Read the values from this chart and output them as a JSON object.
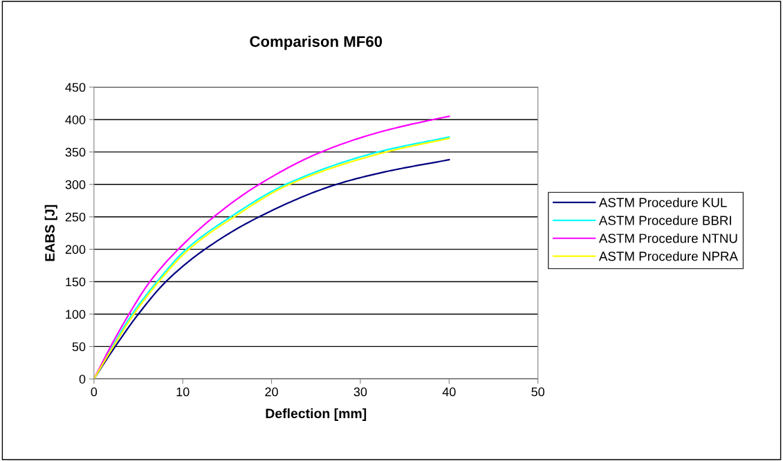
{
  "chart_data": {
    "type": "line",
    "title": "Comparison MF60",
    "xlabel": "Deflection [mm]",
    "ylabel": "EABS [J]",
    "xlim": [
      0,
      50
    ],
    "xticks": [
      0,
      10,
      20,
      30,
      40,
      50
    ],
    "ylim": [
      0,
      450
    ],
    "yticks": [
      0,
      50,
      100,
      150,
      200,
      250,
      300,
      350,
      400,
      450
    ],
    "grid": "y",
    "legend": "right",
    "marker": "none",
    "line_style": "solid",
    "series": [
      {
        "name": "ASTM Procedure KUL",
        "color": "#000080",
        "x": [
          0,
          2,
          5,
          8.1,
          12.5,
          18.6,
          27.3,
          33,
          40
        ],
        "values": [
          0,
          42,
          100,
          150,
          200,
          250,
          300,
          320,
          338
        ]
      },
      {
        "name": "ASTM Procedure BBRI",
        "color": "#00ffff",
        "x": [
          0,
          2,
          4.3,
          7.1,
          10.4,
          15.4,
          21.6,
          32,
          40
        ],
        "values": [
          0,
          48,
          100,
          150,
          200,
          250,
          300,
          350,
          373
        ]
      },
      {
        "name": "ASTM Procedure NTNU",
        "color": "#ff00ff",
        "x": [
          0,
          2,
          3.95,
          6.3,
          9.5,
          13.5,
          18.6,
          25.6,
          32,
          38.2,
          40
        ],
        "values": [
          0,
          53,
          100,
          150,
          200,
          250,
          300,
          350,
          380,
          400,
          405
        ]
      },
      {
        "name": "ASTM Procedure NPRA",
        "color": "#ffff00",
        "x": [
          0,
          2,
          4.5,
          7.3,
          10.7,
          15.8,
          22,
          32.9,
          40
        ],
        "values": [
          0,
          46,
          100,
          150,
          200,
          250,
          300,
          350,
          371
        ]
      }
    ]
  }
}
